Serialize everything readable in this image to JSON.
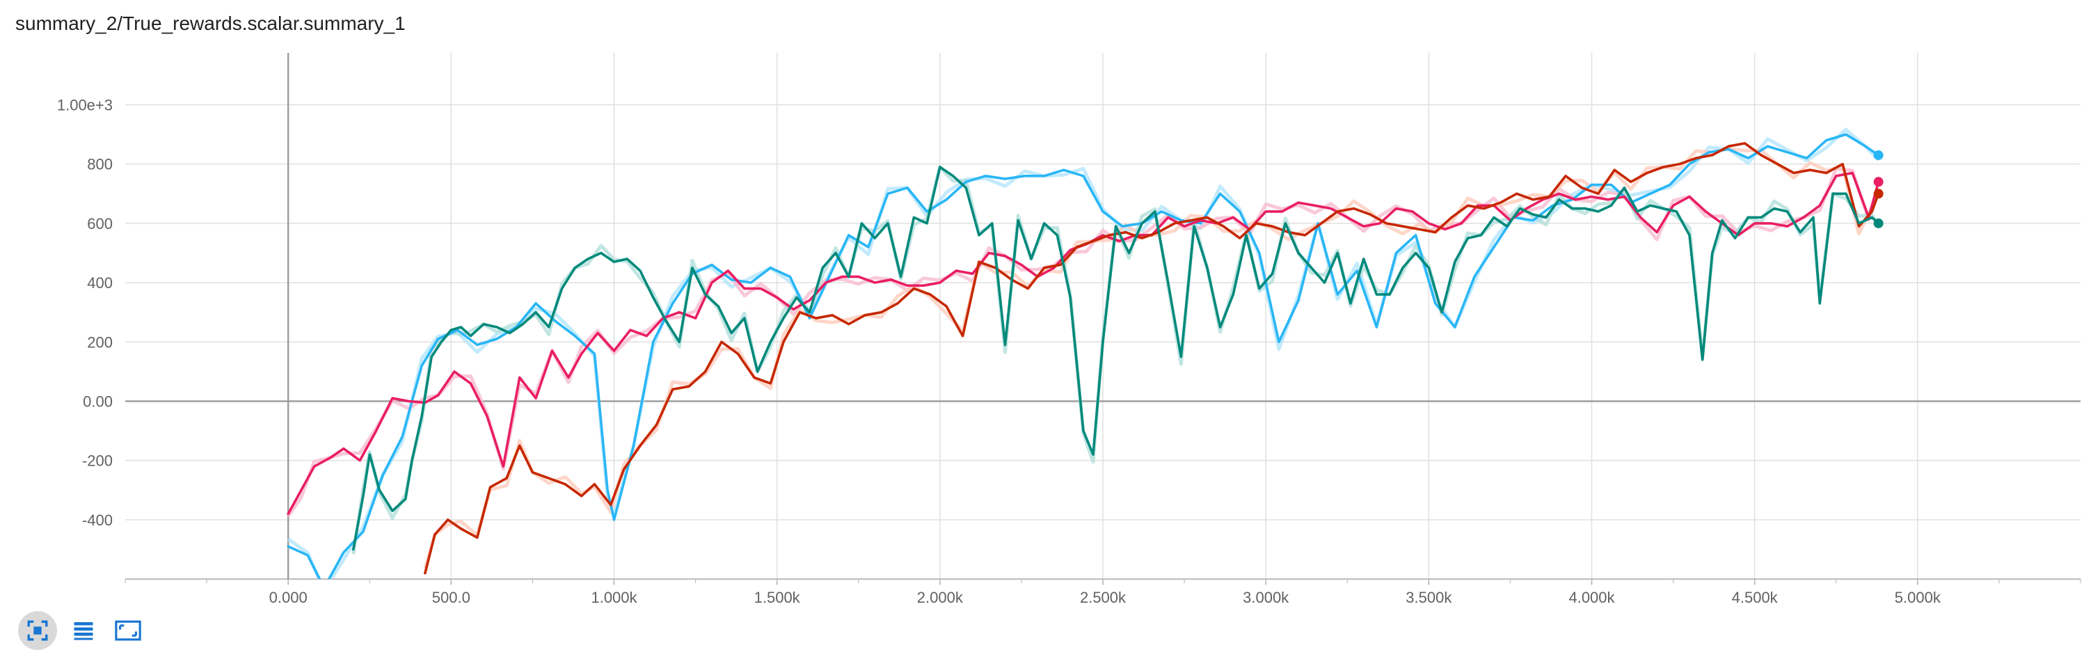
{
  "title": "summary_2/True_rewards.scalar.summary_1",
  "toolbar": {
    "buttons": [
      {
        "icon": "fit-domain-icon",
        "active": true
      },
      {
        "icon": "log-scale-icon",
        "active": false
      },
      {
        "icon": "toggle-size-icon",
        "active": false
      }
    ],
    "icon_color": "#1976d2"
  },
  "chart_data": {
    "type": "line",
    "title": "summary_2/True_rewards.scalar.summary_1",
    "xlabel": "",
    "ylabel": "",
    "xlim": [
      -500,
      5500
    ],
    "ylim": [
      -600,
      1175
    ],
    "grid": true,
    "x_ticks": [
      {
        "value": 0,
        "label": "0.000"
      },
      {
        "value": 500,
        "label": "500.0"
      },
      {
        "value": 1000,
        "label": "1.000k"
      },
      {
        "value": 1500,
        "label": "1.500k"
      },
      {
        "value": 2000,
        "label": "2.000k"
      },
      {
        "value": 2500,
        "label": "2.500k"
      },
      {
        "value": 3000,
        "label": "3.000k"
      },
      {
        "value": 3500,
        "label": "3.500k"
      },
      {
        "value": 4000,
        "label": "4.000k"
      },
      {
        "value": 4500,
        "label": "4.500k"
      },
      {
        "value": 5000,
        "label": "5.000k"
      }
    ],
    "y_ticks": [
      {
        "value": -400,
        "label": "-400"
      },
      {
        "value": -200,
        "label": "-200"
      },
      {
        "value": 0,
        "label": "0.00"
      },
      {
        "value": 200,
        "label": "200"
      },
      {
        "value": 400,
        "label": "400"
      },
      {
        "value": 600,
        "label": "600"
      },
      {
        "value": 800,
        "label": "800"
      },
      {
        "value": 1000,
        "label": "1.00e+3"
      }
    ],
    "series": [
      {
        "color": "#29b6f6",
        "raw_color": "#b3e5fc",
        "x": [
          0,
          60,
          110,
          170,
          230,
          290,
          350,
          410,
          460,
          520,
          580,
          640,
          700,
          760,
          820,
          880,
          940,
          980,
          1000,
          1060,
          1120,
          1180,
          1240,
          1300,
          1360,
          1420,
          1480,
          1540,
          1600,
          1660,
          1720,
          1780,
          1840,
          1900,
          1960,
          2020,
          2080,
          2140,
          2200,
          2260,
          2320,
          2380,
          2440,
          2500,
          2560,
          2620,
          2680,
          2740,
          2800,
          2860,
          2920,
          2980,
          3040,
          3100,
          3160,
          3220,
          3280,
          3340,
          3400,
          3460,
          3520,
          3580,
          3640,
          3700,
          3760,
          3820,
          3880,
          3940,
          4000,
          4060,
          4120,
          4180,
          4240,
          4300,
          4360,
          4420,
          4480,
          4540,
          4600,
          4660,
          4720,
          4780,
          4840,
          4880
        ],
        "y": [
          -490,
          -520,
          -630,
          -510,
          -440,
          -250,
          -120,
          120,
          210,
          240,
          190,
          210,
          250,
          330,
          270,
          220,
          160,
          -300,
          -400,
          -150,
          200,
          330,
          430,
          460,
          410,
          400,
          450,
          420,
          280,
          420,
          560,
          520,
          700,
          720,
          640,
          680,
          740,
          760,
          750,
          760,
          760,
          780,
          760,
          640,
          590,
          600,
          640,
          610,
          600,
          700,
          640,
          500,
          200,
          340,
          600,
          360,
          440,
          250,
          500,
          560,
          330,
          250,
          420,
          520,
          620,
          610,
          660,
          680,
          730,
          730,
          670,
          700,
          730,
          800,
          840,
          850,
          820,
          860,
          840,
          820,
          880,
          900,
          860,
          830
        ]
      },
      {
        "color": "#e91e63",
        "raw_color": "#f8bbd0",
        "x": [
          0,
          40,
          80,
          130,
          170,
          220,
          270,
          320,
          370,
          420,
          460,
          510,
          560,
          610,
          660,
          710,
          760,
          810,
          860,
          900,
          950,
          1000,
          1050,
          1100,
          1150,
          1200,
          1250,
          1300,
          1350,
          1400,
          1450,
          1500,
          1550,
          1600,
          1650,
          1700,
          1750,
          1800,
          1850,
          1900,
          1950,
          2000,
          2050,
          2100,
          2150,
          2200,
          2250,
          2300,
          2350,
          2400,
          2450,
          2500,
          2550,
          2600,
          2650,
          2700,
          2750,
          2800,
          2850,
          2900,
          2950,
          3000,
          3050,
          3100,
          3150,
          3200,
          3250,
          3300,
          3350,
          3400,
          3450,
          3500,
          3550,
          3600,
          3650,
          3700,
          3750,
          3800,
          3850,
          3900,
          3950,
          4000,
          4050,
          4100,
          4150,
          4200,
          4250,
          4300,
          4350,
          4400,
          4450,
          4500,
          4550,
          4600,
          4650,
          4700,
          4750,
          4800,
          4850,
          4880
        ],
        "y": [
          -380,
          -300,
          -220,
          -190,
          -160,
          -200,
          -100,
          10,
          0,
          -5,
          20,
          100,
          60,
          -50,
          -220,
          80,
          10,
          170,
          80,
          160,
          230,
          170,
          240,
          220,
          280,
          300,
          280,
          400,
          440,
          380,
          380,
          350,
          310,
          340,
          400,
          420,
          420,
          400,
          410,
          390,
          390,
          400,
          440,
          430,
          500,
          490,
          460,
          420,
          450,
          510,
          530,
          560,
          540,
          560,
          560,
          620,
          590,
          610,
          600,
          620,
          580,
          640,
          640,
          670,
          660,
          650,
          620,
          590,
          600,
          650,
          640,
          600,
          580,
          600,
          660,
          660,
          610,
          650,
          680,
          700,
          680,
          690,
          680,
          690,
          620,
          570,
          660,
          690,
          640,
          600,
          560,
          600,
          600,
          590,
          620,
          660,
          760,
          770,
          620,
          740
        ]
      },
      {
        "color": "#c62800",
        "raw_color": "#ffccbc",
        "x": [
          420,
          450,
          490,
          530,
          580,
          620,
          670,
          710,
          750,
          800,
          850,
          900,
          940,
          990,
          1030,
          1080,
          1130,
          1180,
          1230,
          1280,
          1330,
          1380,
          1430,
          1480,
          1520,
          1570,
          1620,
          1670,
          1720,
          1770,
          1820,
          1870,
          1920,
          1970,
          2020,
          2070,
          2120,
          2170,
          2220,
          2270,
          2320,
          2370,
          2420,
          2470,
          2520,
          2570,
          2620,
          2670,
          2720,
          2770,
          2820,
          2870,
          2920,
          2970,
          3020,
          3070,
          3120,
          3170,
          3220,
          3270,
          3320,
          3370,
          3420,
          3470,
          3520,
          3570,
          3620,
          3670,
          3720,
          3770,
          3820,
          3870,
          3920,
          3970,
          4020,
          4070,
          4120,
          4170,
          4220,
          4270,
          4320,
          4370,
          4420,
          4470,
          4520,
          4570,
          4620,
          4670,
          4720,
          4770,
          4820,
          4860,
          4880
        ],
        "y": [
          -580,
          -450,
          -400,
          -430,
          -460,
          -290,
          -260,
          -150,
          -240,
          -260,
          -280,
          -320,
          -280,
          -350,
          -230,
          -150,
          -80,
          40,
          50,
          100,
          200,
          160,
          80,
          60,
          200,
          300,
          280,
          290,
          260,
          290,
          300,
          330,
          380,
          360,
          320,
          220,
          470,
          450,
          410,
          380,
          450,
          460,
          520,
          540,
          560,
          570,
          550,
          570,
          600,
          610,
          620,
          590,
          550,
          600,
          590,
          570,
          560,
          600,
          640,
          650,
          630,
          600,
          590,
          580,
          570,
          620,
          660,
          650,
          670,
          700,
          680,
          690,
          760,
          720,
          700,
          780,
          740,
          770,
          790,
          800,
          820,
          830,
          860,
          870,
          830,
          800,
          770,
          780,
          770,
          800,
          590,
          640,
          700
        ]
      },
      {
        "color": "#00897b",
        "raw_color": "#b2dfdb",
        "x": [
          200,
          230,
          250,
          280,
          320,
          360,
          380,
          410,
          440,
          470,
          500,
          530,
          560,
          600,
          640,
          680,
          720,
          760,
          800,
          840,
          880,
          920,
          960,
          1000,
          1040,
          1080,
          1120,
          1160,
          1200,
          1240,
          1280,
          1320,
          1360,
          1400,
          1440,
          1480,
          1520,
          1560,
          1600,
          1640,
          1680,
          1720,
          1760,
          1800,
          1840,
          1880,
          1920,
          1960,
          2000,
          2040,
          2080,
          2120,
          2160,
          2200,
          2240,
          2280,
          2320,
          2360,
          2400,
          2440,
          2470,
          2500,
          2540,
          2580,
          2620,
          2660,
          2700,
          2740,
          2780,
          2820,
          2860,
          2900,
          2940,
          2980,
          3020,
          3060,
          3100,
          3140,
          3180,
          3220,
          3260,
          3300,
          3340,
          3380,
          3420,
          3460,
          3500,
          3540,
          3580,
          3620,
          3660,
          3700,
          3740,
          3780,
          3820,
          3860,
          3900,
          3940,
          3980,
          4020,
          4060,
          4100,
          4140,
          4180,
          4220,
          4260,
          4300,
          4340,
          4370,
          4400,
          4440,
          4480,
          4520,
          4560,
          4600,
          4640,
          4680,
          4700,
          4740,
          4780,
          4820,
          4860,
          4880
        ],
        "y": [
          -500,
          -320,
          -180,
          -300,
          -370,
          -330,
          -200,
          -50,
          150,
          200,
          240,
          250,
          220,
          260,
          250,
          230,
          260,
          300,
          250,
          380,
          450,
          480,
          500,
          470,
          480,
          440,
          350,
          270,
          200,
          450,
          360,
          320,
          230,
          280,
          100,
          200,
          280,
          350,
          300,
          450,
          500,
          420,
          600,
          550,
          600,
          420,
          620,
          600,
          790,
          760,
          720,
          560,
          600,
          190,
          610,
          480,
          600,
          560,
          350,
          -100,
          -180,
          200,
          590,
          500,
          600,
          640,
          400,
          150,
          590,
          450,
          250,
          360,
          560,
          380,
          430,
          600,
          500,
          450,
          400,
          500,
          330,
          480,
          360,
          360,
          450,
          500,
          450,
          300,
          470,
          550,
          560,
          620,
          590,
          650,
          630,
          620,
          680,
          650,
          650,
          640,
          660,
          720,
          640,
          660,
          650,
          640,
          560,
          140,
          500,
          610,
          550,
          620,
          620,
          650,
          640,
          570,
          620,
          330,
          700,
          700,
          600,
          620,
          600
        ]
      }
    ]
  }
}
